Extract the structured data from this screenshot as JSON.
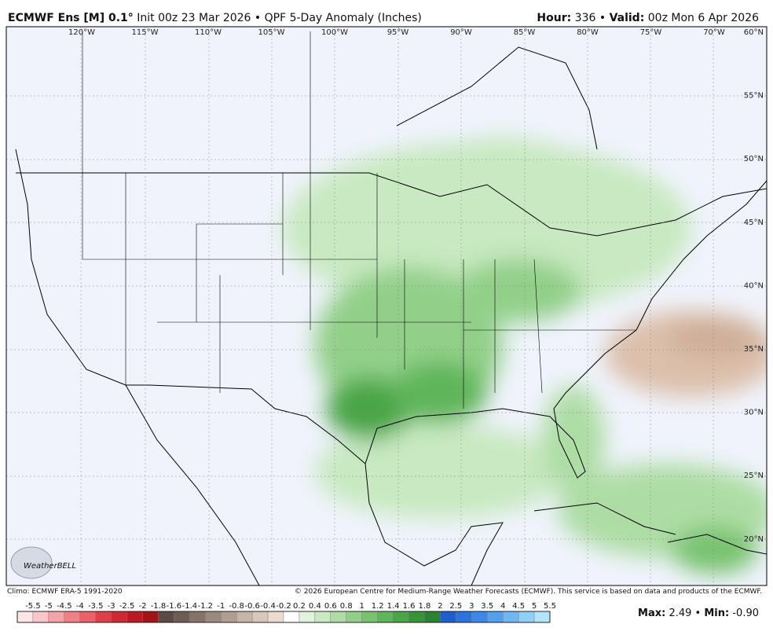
{
  "header": {
    "title_bold": "ECMWF Ens [M] 0.1°",
    "title_rest": "Init 00z 23 Mar 2026 • QPF 5-Day Anomaly (Inches)",
    "hour_label": "Hour:",
    "hour": "336 •",
    "valid_label": "Valid:",
    "valid": "00z Mon 6 Apr 2026"
  },
  "map": {
    "lon_labels": [
      "120°W",
      "115°W",
      "110°W",
      "105°W",
      "100°W",
      "95°W",
      "90°W",
      "85°W",
      "80°W",
      "75°W",
      "70°W"
    ],
    "lat_labels": [
      "60°N",
      "55°N",
      "50°N",
      "45°N",
      "40°N",
      "35°N",
      "30°N",
      "25°N",
      "20°N"
    ],
    "logo": "WeatherBELL"
  },
  "footer": {
    "climo": "Climo: ECMWF ERA-5 1991-2020",
    "copyright": "© 2026 European Centre for Medium-Range Weather Forecasts (ECMWF). This service is based on data and products of the ECMWF."
  },
  "legend": {
    "ticks": [
      -5.5,
      -5,
      -4.5,
      -4,
      -3.5,
      -3,
      -2.5,
      -2,
      -1.8,
      -1.6,
      -1.4,
      -1.2,
      -1,
      -0.8,
      -0.6,
      -0.4,
      -0.2,
      0.2,
      0.4,
      0.6,
      0.8,
      1,
      1.2,
      1.4,
      1.6,
      1.8,
      2,
      2.5,
      3,
      3.5,
      4,
      4.5,
      5,
      5.5
    ],
    "colors": [
      "#fde4e6",
      "#f9c7cb",
      "#f4a3a8",
      "#ee8088",
      "#e86068",
      "#dd4048",
      "#cf2a34",
      "#bb1a24",
      "#a31419",
      "#5c4b44",
      "#6e5d55",
      "#85736a",
      "#9b897f",
      "#b09e92",
      "#c6b4a6",
      "#d9c8ba",
      "#eadcd0",
      "#ffffff",
      "#e2f3dd",
      "#c8e9c1",
      "#addda4",
      "#92d089",
      "#78c370",
      "#5fb55a",
      "#48a647",
      "#379538",
      "#2a8330",
      "#1d5fd0",
      "#2a74e0",
      "#3c88ea",
      "#53a0f0",
      "#70b8f4",
      "#90cff7",
      "#b2e4fa"
    ]
  },
  "stats": {
    "max_label": "Max:",
    "max": "2.49 •",
    "min_label": "Min:",
    "min": "-0.90"
  }
}
